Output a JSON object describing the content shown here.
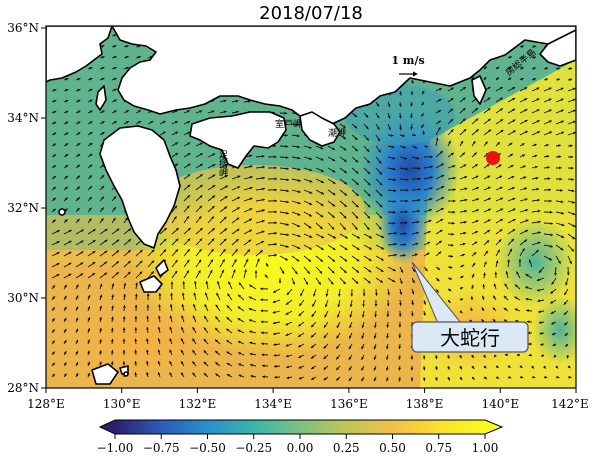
{
  "title": "2018/07/18",
  "map": {
    "lon_range": [
      128,
      142
    ],
    "lat_range": [
      28,
      36.2
    ],
    "x_ticks": [
      "128°E",
      "130°E",
      "132°E",
      "134°E",
      "136°E",
      "138°E",
      "140°E",
      "142°E"
    ],
    "y_ticks": [
      "36°N",
      "34°N",
      "32°N",
      "30°N",
      "28°N"
    ]
  },
  "colorbar": {
    "ticks": [
      "−1.00",
      "−0.75",
      "−0.50",
      "−0.25",
      "0.00",
      "0.25",
      "0.50",
      "0.75",
      "1.00"
    ],
    "colors": [
      "#2e1e6e",
      "#2b5cb8",
      "#2a8fcd",
      "#3ab5a8",
      "#7cc283",
      "#bfc659",
      "#f2c04a",
      "#f8e02e",
      "#f9fb1c"
    ]
  },
  "labels": {
    "scale": "1 m/s",
    "ashizuri": "足摺岬",
    "muroto": "室戸岬",
    "shionomisaki": "潮岬",
    "boso": "房総半島",
    "callout": "大蛇行"
  },
  "marker_color": "#ee1111",
  "land_color": "#ffffff"
}
